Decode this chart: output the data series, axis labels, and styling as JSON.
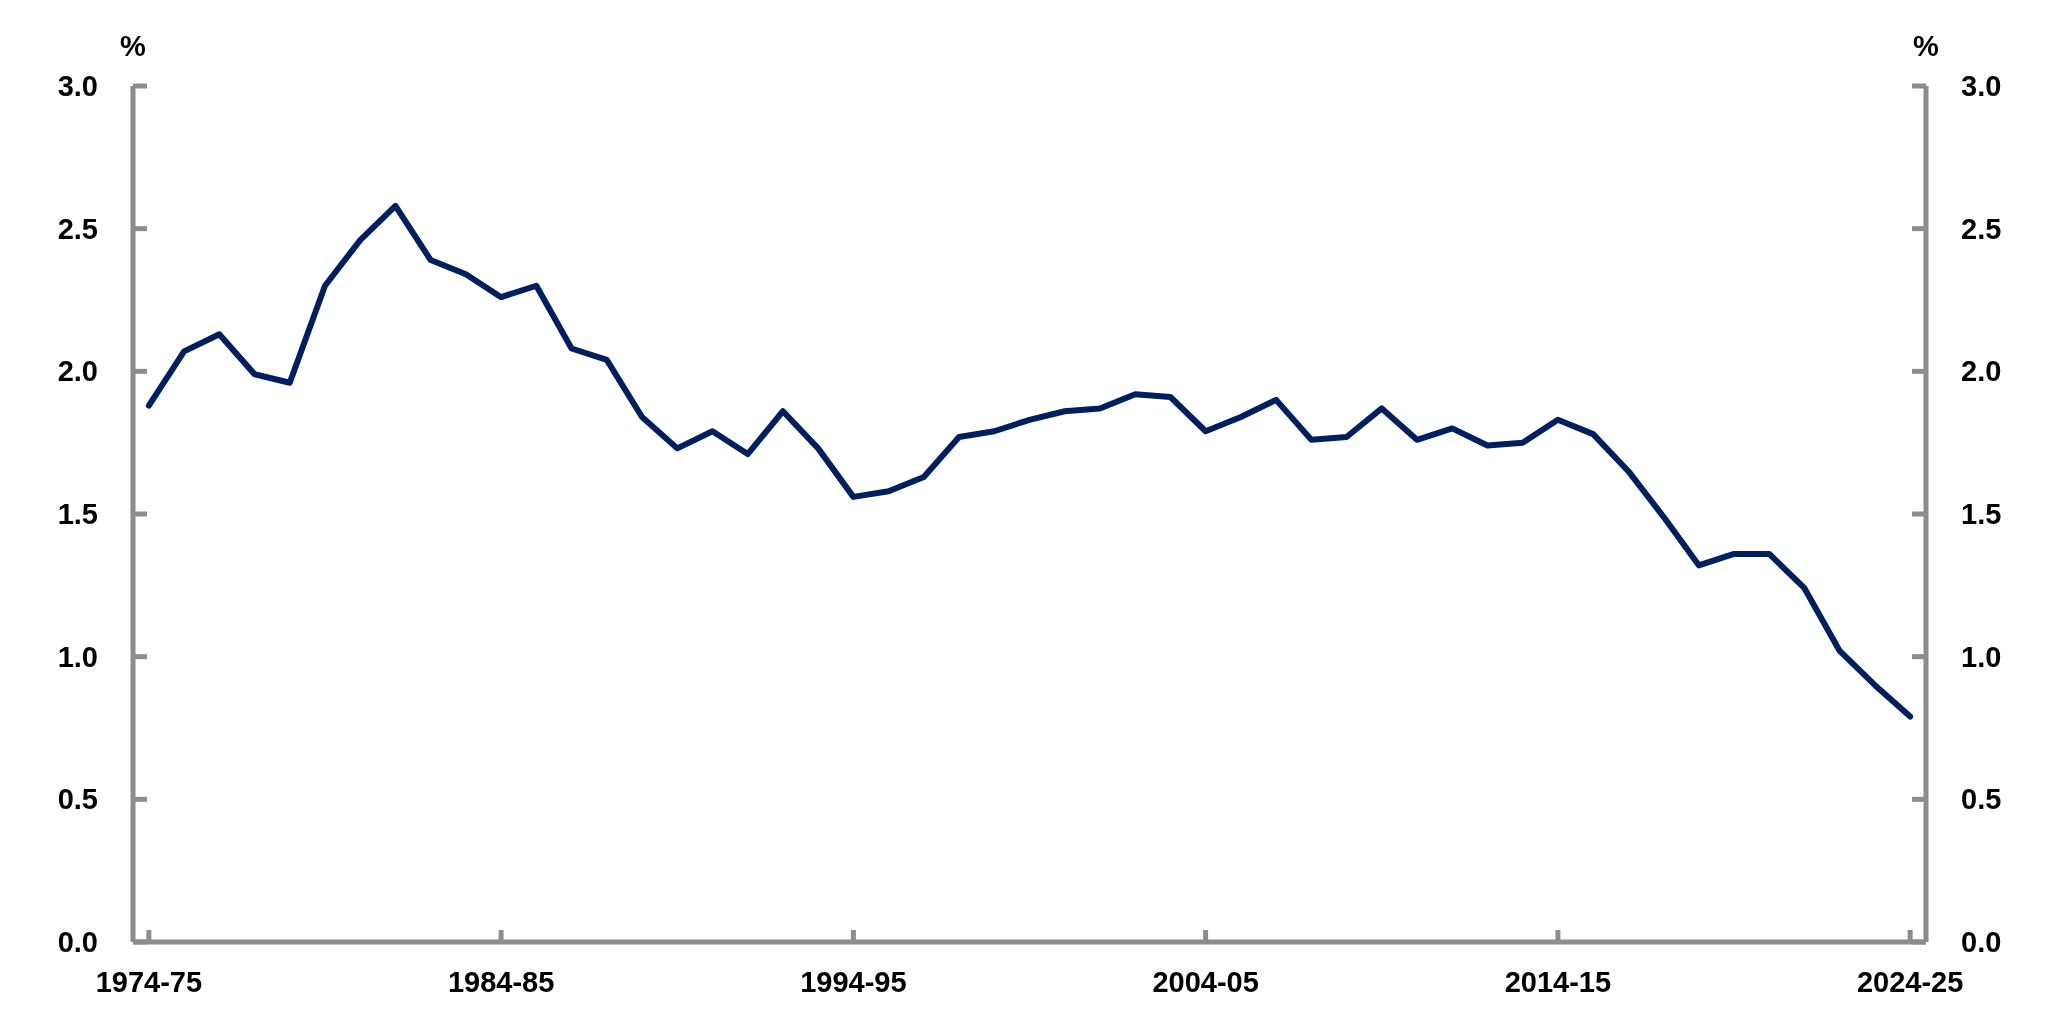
{
  "chart_data": {
    "type": "line",
    "ylabel": "%",
    "y2label": "%",
    "categories": [
      "1974-75",
      null,
      null,
      null,
      null,
      null,
      null,
      null,
      null,
      null,
      "1984-85",
      null,
      null,
      null,
      null,
      null,
      null,
      null,
      null,
      null,
      "1994-95",
      null,
      null,
      null,
      null,
      null,
      null,
      null,
      null,
      null,
      "2004-05",
      null,
      null,
      null,
      null,
      null,
      null,
      null,
      null,
      null,
      "2014-15",
      null,
      null,
      null,
      null,
      null,
      null,
      null,
      null,
      null,
      "2024-25"
    ],
    "series": [
      {
        "color": "#001f5f",
        "values": [
          1.88,
          2.07,
          2.13,
          1.99,
          1.96,
          2.3,
          2.46,
          2.58,
          2.39,
          2.34,
          2.26,
          2.3,
          2.08,
          2.04,
          1.84,
          1.73,
          1.79,
          1.71,
          1.86,
          1.73,
          1.56,
          1.58,
          1.63,
          1.77,
          1.79,
          1.83,
          1.86,
          1.87,
          1.92,
          1.91,
          1.79,
          1.84,
          1.9,
          1.76,
          1.77,
          1.87,
          1.76,
          1.8,
          1.74,
          1.75,
          1.83,
          1.78,
          1.65,
          1.49,
          1.32,
          1.36,
          1.36,
          1.24,
          1.02,
          0.9,
          0.79
        ]
      }
    ],
    "ylim": [
      0,
      3
    ],
    "yticks": [
      {
        "value": 0,
        "label": "0.0"
      },
      {
        "value": 0.5,
        "label": "0.5"
      },
      {
        "value": 1,
        "label": "1.0"
      },
      {
        "value": 1.5,
        "label": "1.5"
      },
      {
        "value": 2,
        "label": "2.0"
      },
      {
        "value": 2.5,
        "label": "2.5"
      },
      {
        "value": 3,
        "label": "3.0"
      }
    ],
    "y2lim": [
      0,
      3
    ],
    "y2ticks": [
      {
        "value": 0,
        "label": "0.0"
      },
      {
        "value": 0.5,
        "label": "0.5"
      },
      {
        "value": 1,
        "label": "1.0"
      },
      {
        "value": 1.5,
        "label": "1.5"
      },
      {
        "value": 2,
        "label": "2.0"
      },
      {
        "value": 2.5,
        "label": "2.5"
      },
      {
        "value": 3,
        "label": "3.0"
      }
    ],
    "grid": false,
    "marker": "none",
    "line_style": "solid"
  }
}
